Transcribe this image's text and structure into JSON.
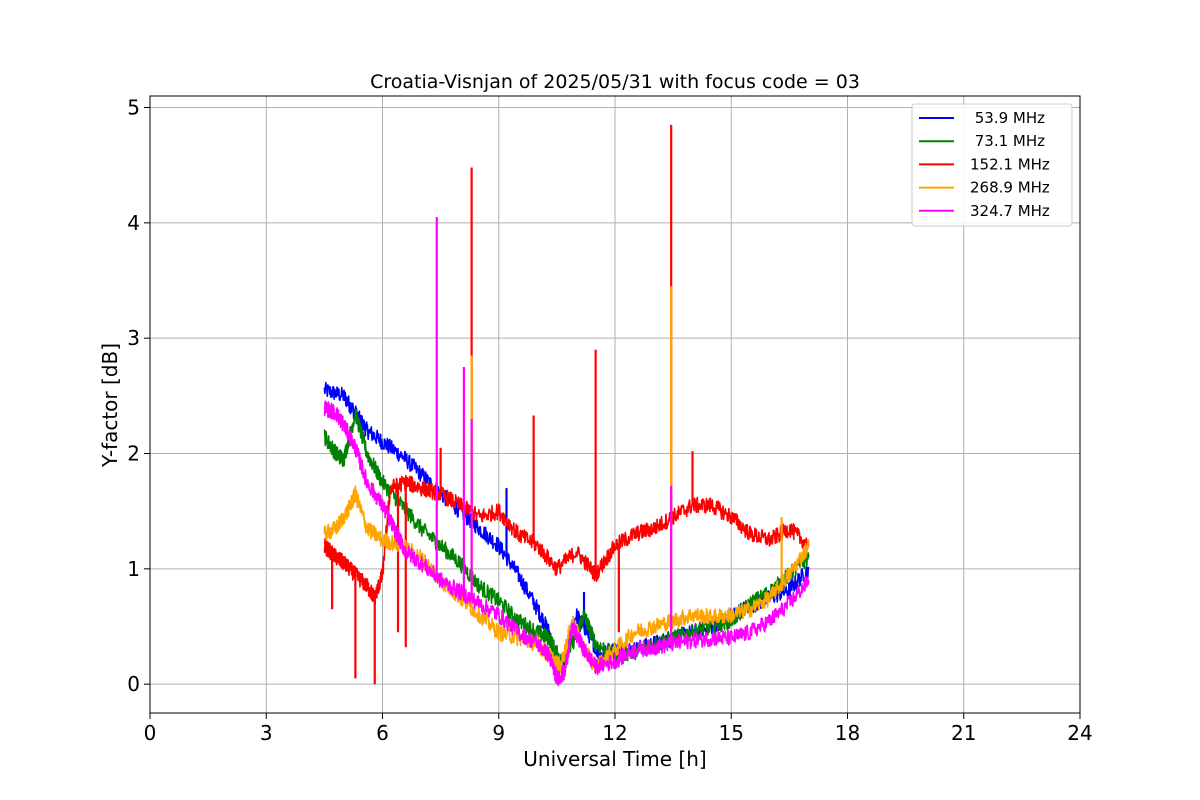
{
  "chart_data": {
    "type": "line",
    "title": "Croatia-Visnjan of 2025/05/31 with focus code = 03",
    "xlabel": "Universal Time [h]",
    "ylabel": "Y-factor [dB]",
    "xlim": [
      0,
      24
    ],
    "ylim": [
      -0.25,
      5.1
    ],
    "xticks": [
      "0",
      "3",
      "6",
      "9",
      "12",
      "15",
      "18",
      "21",
      "24"
    ],
    "yticks": [
      "0",
      "1",
      "2",
      "3",
      "4",
      "5"
    ],
    "grid": true,
    "legend_position": "top-right",
    "series": [
      {
        "name": " 53.9 MHz",
        "color": "#0000ff",
        "points": [
          [
            4.5,
            2.55
          ],
          [
            5.0,
            2.5
          ],
          [
            5.3,
            2.35
          ],
          [
            5.6,
            2.2
          ],
          [
            6.0,
            2.1
          ],
          [
            6.5,
            1.98
          ],
          [
            7.0,
            1.82
          ],
          [
            7.5,
            1.65
          ],
          [
            8.0,
            1.5
          ],
          [
            8.5,
            1.35
          ],
          [
            9.0,
            1.2
          ],
          [
            9.5,
            0.95
          ],
          [
            10.0,
            0.65
          ],
          [
            10.3,
            0.45
          ],
          [
            10.5,
            0.15
          ],
          [
            10.7,
            0.2
          ],
          [
            11.0,
            0.6
          ],
          [
            11.3,
            0.45
          ],
          [
            11.6,
            0.25
          ],
          [
            12.0,
            0.3
          ],
          [
            12.5,
            0.3
          ],
          [
            13.0,
            0.35
          ],
          [
            13.5,
            0.4
          ],
          [
            14.0,
            0.45
          ],
          [
            14.5,
            0.5
          ],
          [
            15.0,
            0.6
          ],
          [
            15.5,
            0.68
          ],
          [
            16.0,
            0.75
          ],
          [
            16.5,
            0.82
          ],
          [
            17.0,
            1.0
          ]
        ],
        "spikes": [
          [
            9.2,
            1.7
          ],
          [
            11.2,
            0.8
          ],
          [
            8.3,
            1.8
          ]
        ]
      },
      {
        "name": " 73.1 MHz",
        "color": "#008000",
        "points": [
          [
            4.5,
            2.15
          ],
          [
            4.8,
            2.0
          ],
          [
            5.0,
            1.95
          ],
          [
            5.3,
            2.35
          ],
          [
            5.6,
            2.0
          ],
          [
            6.0,
            1.75
          ],
          [
            6.5,
            1.55
          ],
          [
            7.0,
            1.35
          ],
          [
            7.5,
            1.2
          ],
          [
            8.0,
            1.05
          ],
          [
            8.5,
            0.85
          ],
          [
            9.0,
            0.72
          ],
          [
            9.5,
            0.55
          ],
          [
            10.0,
            0.45
          ],
          [
            10.3,
            0.4
          ],
          [
            10.6,
            0.2
          ],
          [
            10.9,
            0.35
          ],
          [
            11.2,
            0.6
          ],
          [
            11.5,
            0.35
          ],
          [
            12.0,
            0.25
          ],
          [
            12.5,
            0.28
          ],
          [
            13.0,
            0.35
          ],
          [
            13.5,
            0.4
          ],
          [
            14.0,
            0.45
          ],
          [
            14.5,
            0.5
          ],
          [
            15.0,
            0.55
          ],
          [
            15.5,
            0.7
          ],
          [
            16.0,
            0.8
          ],
          [
            16.5,
            0.95
          ],
          [
            17.0,
            1.1
          ]
        ],
        "spikes": []
      },
      {
        "name": "152.1 MHz",
        "color": "#ff0000",
        "points": [
          [
            4.5,
            1.2
          ],
          [
            4.8,
            1.1
          ],
          [
            5.0,
            1.05
          ],
          [
            5.3,
            0.95
          ],
          [
            5.6,
            0.85
          ],
          [
            5.8,
            0.75
          ],
          [
            6.0,
            0.95
          ],
          [
            6.2,
            1.7
          ],
          [
            6.6,
            1.75
          ],
          [
            7.0,
            1.7
          ],
          [
            7.5,
            1.65
          ],
          [
            8.0,
            1.55
          ],
          [
            8.5,
            1.45
          ],
          [
            9.0,
            1.5
          ],
          [
            9.5,
            1.3
          ],
          [
            10.0,
            1.2
          ],
          [
            10.5,
            1.0
          ],
          [
            11.0,
            1.15
          ],
          [
            11.5,
            0.95
          ],
          [
            12.0,
            1.2
          ],
          [
            12.5,
            1.3
          ],
          [
            13.0,
            1.35
          ],
          [
            13.5,
            1.45
          ],
          [
            14.0,
            1.55
          ],
          [
            14.5,
            1.55
          ],
          [
            15.0,
            1.45
          ],
          [
            15.5,
            1.3
          ],
          [
            16.0,
            1.25
          ],
          [
            16.5,
            1.35
          ],
          [
            17.0,
            1.2
          ]
        ],
        "spikes": [
          [
            8.3,
            4.48
          ],
          [
            13.45,
            4.85
          ],
          [
            11.5,
            2.9
          ],
          [
            9.9,
            2.33
          ],
          [
            7.5,
            2.05
          ],
          [
            14.0,
            2.02
          ],
          [
            4.7,
            0.65
          ],
          [
            5.3,
            0.05
          ],
          [
            5.8,
            0.0
          ],
          [
            6.4,
            0.45
          ],
          [
            6.6,
            0.32
          ],
          [
            12.1,
            0.45
          ]
        ]
      },
      {
        "name": "268.9 MHz",
        "color": "#ffa500",
        "points": [
          [
            4.5,
            1.3
          ],
          [
            4.8,
            1.35
          ],
          [
            5.1,
            1.5
          ],
          [
            5.3,
            1.65
          ],
          [
            5.6,
            1.35
          ],
          [
            6.0,
            1.25
          ],
          [
            6.5,
            1.2
          ],
          [
            7.0,
            1.1
          ],
          [
            7.5,
            0.9
          ],
          [
            8.0,
            0.75
          ],
          [
            8.5,
            0.6
          ],
          [
            9.0,
            0.45
          ],
          [
            9.5,
            0.4
          ],
          [
            10.0,
            0.35
          ],
          [
            10.3,
            0.25
          ],
          [
            10.6,
            0.15
          ],
          [
            10.9,
            0.55
          ],
          [
            11.2,
            0.3
          ],
          [
            11.5,
            0.15
          ],
          [
            12.0,
            0.3
          ],
          [
            12.5,
            0.45
          ],
          [
            13.0,
            0.5
          ],
          [
            13.5,
            0.55
          ],
          [
            14.0,
            0.6
          ],
          [
            14.5,
            0.58
          ],
          [
            15.0,
            0.6
          ],
          [
            15.5,
            0.65
          ],
          [
            16.0,
            0.75
          ],
          [
            16.5,
            0.95
          ],
          [
            17.0,
            1.2
          ]
        ],
        "spikes": [
          [
            13.45,
            3.45
          ],
          [
            8.3,
            2.85
          ],
          [
            16.3,
            1.45
          ]
        ]
      },
      {
        "name": "324.7 MHz",
        "color": "#ff00ff",
        "points": [
          [
            4.5,
            2.4
          ],
          [
            4.8,
            2.35
          ],
          [
            5.0,
            2.25
          ],
          [
            5.3,
            2.05
          ],
          [
            5.6,
            1.75
          ],
          [
            6.0,
            1.55
          ],
          [
            6.3,
            1.35
          ],
          [
            6.6,
            1.15
          ],
          [
            7.0,
            1.05
          ],
          [
            7.5,
            0.9
          ],
          [
            8.0,
            0.8
          ],
          [
            8.5,
            0.7
          ],
          [
            9.0,
            0.6
          ],
          [
            9.5,
            0.45
          ],
          [
            10.0,
            0.35
          ],
          [
            10.3,
            0.25
          ],
          [
            10.5,
            0.05
          ],
          [
            10.7,
            0.1
          ],
          [
            10.9,
            0.5
          ],
          [
            11.2,
            0.3
          ],
          [
            11.5,
            0.15
          ],
          [
            12.0,
            0.2
          ],
          [
            12.5,
            0.3
          ],
          [
            13.0,
            0.32
          ],
          [
            13.5,
            0.35
          ],
          [
            14.0,
            0.38
          ],
          [
            14.5,
            0.4
          ],
          [
            15.0,
            0.4
          ],
          [
            15.5,
            0.45
          ],
          [
            16.0,
            0.55
          ],
          [
            16.5,
            0.7
          ],
          [
            17.0,
            0.9
          ]
        ],
        "spikes": [
          [
            7.4,
            4.05
          ],
          [
            8.1,
            2.75
          ],
          [
            8.3,
            2.3
          ],
          [
            13.45,
            1.72
          ],
          [
            6.1,
            1.55
          ]
        ]
      }
    ]
  }
}
